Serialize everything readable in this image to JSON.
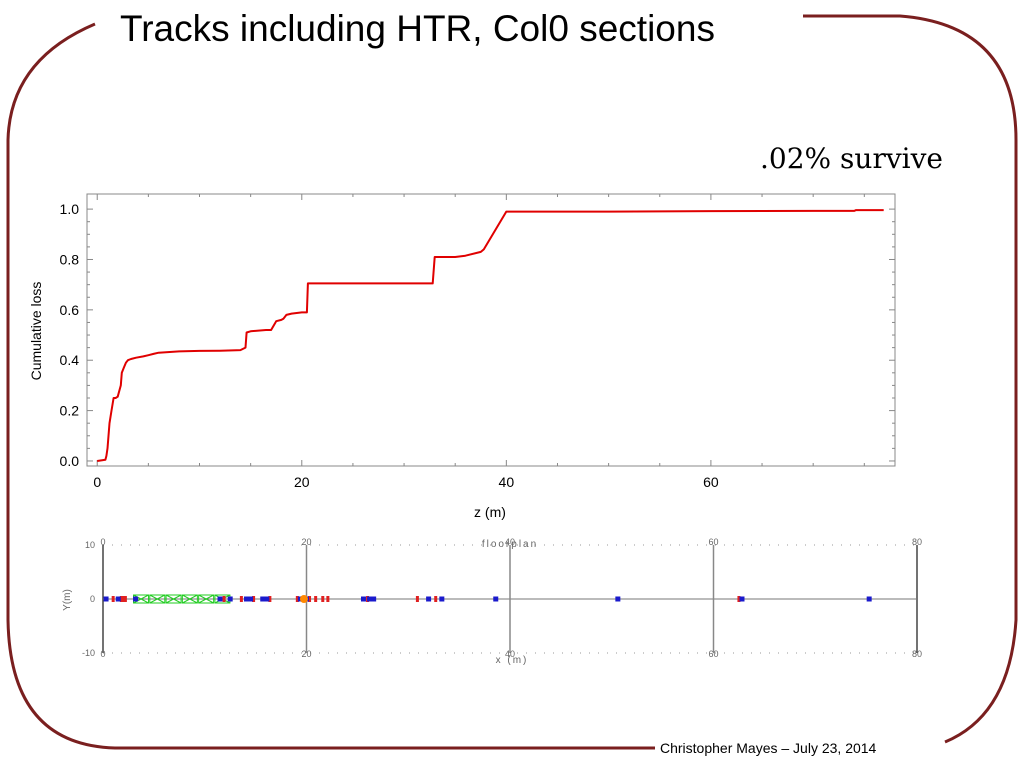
{
  "slide": {
    "title": "Tracks including HTR, Col0 sections",
    "callout": ".02% survive",
    "footer": "Christopher Mayes – July 23, 2014"
  },
  "colors": {
    "frame": "#7a1f1f",
    "loss_curve": "#e00000",
    "element_blue": "#1a1acc",
    "element_red": "#e02020",
    "element_green": "#22cc22",
    "element_orange": "#ff8800"
  },
  "chart_data": [
    {
      "type": "line",
      "xlabel": "z (m)",
      "ylabel": "Cumulative loss",
      "xlim": [
        -1,
        78
      ],
      "ylim": [
        -0.02,
        1.06
      ],
      "xticks": [
        0,
        20,
        40,
        60
      ],
      "yticks": [
        0.0,
        0.2,
        0.4,
        0.6,
        0.8,
        1.0
      ],
      "xtick_labels": [
        "0",
        "20",
        "40",
        "60"
      ],
      "ytick_labels": [
        "0.0",
        "0.2",
        "0.4",
        "0.6",
        "0.8",
        "1.0"
      ],
      "grid": false,
      "series": [
        {
          "x": [
            0,
            0.8,
            0.9,
            1.0,
            1.1,
            1.2,
            1.4,
            1.6,
            1.8,
            2.0,
            2.3,
            2.4,
            2.6,
            2.8,
            3.0,
            3.3,
            3.8,
            4.5,
            5.0,
            5.5,
            6.0,
            8.0,
            10.0,
            12.0,
            14.0,
            14.5,
            14.6,
            15.0,
            16.5,
            17.0,
            17.5,
            18.0,
            18.2,
            18.5,
            19.0,
            20.0,
            20.5,
            20.6,
            26.0,
            32.5,
            32.8,
            33.0,
            35.0,
            36.0,
            37.5,
            37.8,
            40.0,
            50.0,
            60.0,
            70.0,
            74.0,
            74.2,
            76.9
          ],
          "y": [
            0.0,
            0.005,
            0.02,
            0.05,
            0.1,
            0.15,
            0.2,
            0.25,
            0.25,
            0.255,
            0.3,
            0.35,
            0.37,
            0.39,
            0.4,
            0.405,
            0.41,
            0.415,
            0.42,
            0.425,
            0.43,
            0.435,
            0.437,
            0.438,
            0.44,
            0.45,
            0.51,
            0.515,
            0.52,
            0.52,
            0.555,
            0.56,
            0.565,
            0.58,
            0.585,
            0.59,
            0.59,
            0.705,
            0.705,
            0.705,
            0.705,
            0.81,
            0.81,
            0.815,
            0.83,
            0.84,
            0.99,
            0.99,
            0.992,
            0.993,
            0.993,
            0.996,
            0.996
          ]
        }
      ]
    },
    {
      "type": "scatter",
      "title": "floorplan",
      "xlabel": "x (m)",
      "ylabel": "Y(m)",
      "xlim": [
        0,
        80
      ],
      "ylim": [
        -10,
        10
      ],
      "xticks": [
        0,
        20,
        40,
        60,
        80
      ],
      "xtick_labels": [
        "0",
        "20",
        "40",
        "60",
        "80"
      ],
      "ytick_labels": [
        "10",
        "0",
        "-10"
      ],
      "grid": true,
      "elements": {
        "blue_x": [
          0.3,
          1.5,
          3.2,
          11.5,
          12.5,
          14.1,
          14.5,
          15.7,
          16.1,
          19.4,
          20.0,
          25.6,
          26.2,
          26.6,
          32.0,
          33.3,
          38.6,
          50.6,
          62.8,
          75.3
        ],
        "red_x": [
          1.0,
          1.8,
          2.0,
          2.2,
          11.9,
          13.6,
          14.8,
          16.4,
          19.1,
          20.3,
          20.9,
          21.6,
          22.1,
          26.0,
          30.9,
          32.7,
          62.5
        ],
        "green_quad_x": [
          3.0,
          4.6,
          6.2,
          7.8,
          9.4,
          11.0
        ],
        "orange_x": [
          19.75
        ]
      }
    }
  ]
}
